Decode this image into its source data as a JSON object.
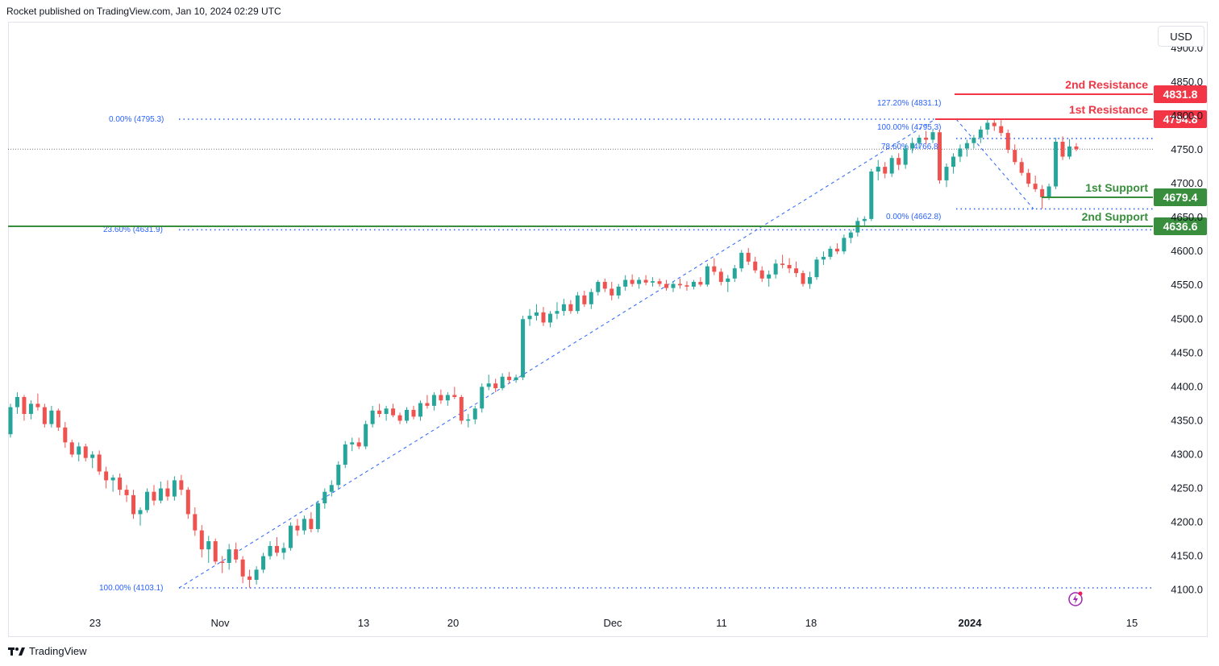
{
  "header": {
    "publisher_line": "Rocket published on TradingView.com, Jan 10, 2024 02:29 UTC"
  },
  "currency_button": {
    "label": "USD"
  },
  "footer": {
    "logo_text": "TradingView"
  },
  "colors": {
    "up": "#26a69a",
    "down": "#ef5350",
    "fib": "#2962ff",
    "resistance": "#f23645",
    "support": "#388e3c",
    "axis_text": "#131722"
  },
  "chart_data": {
    "type": "candlestick",
    "title": "",
    "x_tick_labels": [
      "23",
      "Nov",
      "13",
      "20",
      "Dec",
      "11",
      "18",
      "2024",
      "15"
    ],
    "y_ticks": [
      4100,
      4150,
      4200,
      4250,
      4300,
      4350,
      4400,
      4450,
      4500,
      4550,
      4600,
      4650,
      4700,
      4750,
      4800,
      4850,
      4900
    ],
    "y_tick_labels": [
      "4100.0",
      "4150.0",
      "4200.0",
      "4250.0",
      "4300.0",
      "4350.0",
      "4400.0",
      "4450.0",
      "4500.0",
      "4550.0",
      "4600.0",
      "4650.0",
      "4700.0",
      "4750.0",
      "4800.0",
      "4850.0",
      "4900.0"
    ],
    "ylim": [
      4073,
      4917
    ],
    "last_price": 4751,
    "levels": [
      {
        "name": "2nd Resistance",
        "value": 4831.8,
        "label": "4831.8",
        "kind": "resistance"
      },
      {
        "name": "1st Resistance",
        "value": 4794.8,
        "label": "4794.8",
        "kind": "resistance"
      },
      {
        "name": "1st Support",
        "value": 4679.4,
        "label": "4679.4",
        "kind": "support"
      },
      {
        "name": "2nd Support",
        "value": 4636.6,
        "label": "4636.6",
        "kind": "support"
      }
    ],
    "fib_labels": [
      {
        "text": "0.00% (4795.3)",
        "value": 4795.3
      },
      {
        "text": "23.60% (4631.9)",
        "value": 4631.9
      },
      {
        "text": "100.00% (4103.1)",
        "value": 4103.1
      },
      {
        "text": "127.20% (4831.1)",
        "value": 4831.1
      },
      {
        "text": "100.00% (4795.3)",
        "value": 4795.3
      },
      {
        "text": "78.60% (4766.8)",
        "value": 4766.8
      },
      {
        "text": "0.00% (4662.8)",
        "value": 4662.8
      }
    ],
    "path": [
      [
        0,
        4340
      ],
      [
        2,
        4380
      ],
      [
        5,
        4385
      ],
      [
        9,
        4355
      ],
      [
        13,
        4300
      ],
      [
        17,
        4250
      ],
      [
        22,
        4215
      ],
      [
        25,
        4240
      ],
      [
        30,
        4265
      ],
      [
        33,
        4235
      ],
      [
        38,
        4150
      ],
      [
        42,
        4130
      ],
      [
        46,
        4108
      ],
      [
        50,
        4150
      ],
      [
        55,
        4195
      ],
      [
        60,
        4230
      ],
      [
        64,
        4290
      ],
      [
        67,
        4320
      ],
      [
        71,
        4360
      ],
      [
        76,
        4375
      ],
      [
        80,
        4390
      ],
      [
        84,
        4350
      ],
      [
        87,
        4405
      ],
      [
        92,
        4415
      ],
      [
        94,
        4500
      ],
      [
        100,
        4515
      ],
      [
        104,
        4525
      ],
      [
        108,
        4540
      ],
      [
        111,
        4555
      ],
      [
        116,
        4560
      ],
      [
        122,
        4555
      ],
      [
        128,
        4550
      ],
      [
        133,
        4575
      ],
      [
        137,
        4560
      ],
      [
        142,
        4590
      ],
      [
        147,
        4580
      ],
      [
        151,
        4565
      ],
      [
        155,
        4585
      ],
      [
        158,
        4610
      ],
      [
        162,
        4630
      ],
      [
        166,
        4648
      ],
      [
        170,
        4720
      ],
      [
        174,
        4735
      ],
      [
        179,
        4762
      ],
      [
        184,
        4776
      ],
      [
        187,
        4700
      ],
      [
        191,
        4740
      ],
      [
        197,
        4772
      ],
      [
        202,
        4793
      ],
      [
        206,
        4782
      ],
      [
        210,
        4745
      ],
      [
        214,
        4720
      ],
      [
        218,
        4695
      ],
      [
        222,
        4680
      ],
      [
        225,
        4760
      ],
      [
        228,
        4745
      ],
      [
        230,
        4755
      ]
    ],
    "ohlc": [
      [
        4330,
        4375,
        4325,
        4370
      ],
      [
        4370,
        4392,
        4360,
        4385
      ],
      [
        4385,
        4388,
        4350,
        4360
      ],
      [
        4360,
        4380,
        4352,
        4375
      ],
      [
        4375,
        4390,
        4365,
        4370
      ],
      [
        4370,
        4375,
        4340,
        4345
      ],
      [
        4345,
        4372,
        4340,
        4365
      ],
      [
        4365,
        4368,
        4335,
        4340
      ],
      [
        4340,
        4348,
        4310,
        4318
      ],
      [
        4318,
        4322,
        4296,
        4300
      ],
      [
        4300,
        4318,
        4290,
        4312
      ],
      [
        4312,
        4316,
        4290,
        4295
      ],
      [
        4295,
        4305,
        4280,
        4300
      ],
      [
        4300,
        4306,
        4270,
        4275
      ],
      [
        4275,
        4282,
        4250,
        4262
      ],
      [
        4262,
        4270,
        4245,
        4266
      ],
      [
        4266,
        4272,
        4240,
        4248
      ],
      [
        4248,
        4255,
        4230,
        4240
      ],
      [
        4240,
        4248,
        4205,
        4212
      ],
      [
        4212,
        4222,
        4195,
        4218
      ],
      [
        4218,
        4250,
        4214,
        4245
      ],
      [
        4245,
        4255,
        4225,
        4232
      ],
      [
        4232,
        4260,
        4228,
        4250
      ],
      [
        4250,
        4262,
        4232,
        4238
      ],
      [
        4238,
        4268,
        4232,
        4262
      ],
      [
        4262,
        4270,
        4240,
        4248
      ],
      [
        4248,
        4252,
        4205,
        4212
      ],
      [
        4212,
        4222,
        4180,
        4188
      ],
      [
        4188,
        4196,
        4148,
        4160
      ],
      [
        4160,
        4180,
        4140,
        4172
      ],
      [
        4172,
        4176,
        4138,
        4142
      ],
      [
        4142,
        4150,
        4125,
        4140
      ],
      [
        4140,
        4168,
        4130,
        4160
      ],
      [
        4160,
        4170,
        4140,
        4145
      ],
      [
        4145,
        4150,
        4110,
        4120
      ],
      [
        4120,
        4130,
        4103,
        4115
      ],
      [
        4115,
        4135,
        4108,
        4130
      ],
      [
        4130,
        4155,
        4125,
        4150
      ],
      [
        4150,
        4172,
        4145,
        4165
      ],
      [
        4165,
        4178,
        4150,
        4155
      ],
      [
        4155,
        4170,
        4145,
        4162
      ],
      [
        4162,
        4200,
        4158,
        4195
      ],
      [
        4195,
        4205,
        4180,
        4188
      ],
      [
        4188,
        4210,
        4182,
        4205
      ],
      [
        4205,
        4215,
        4185,
        4190
      ],
      [
        4190,
        4232,
        4185,
        4228
      ],
      [
        4228,
        4250,
        4220,
        4245
      ],
      [
        4245,
        4262,
        4238,
        4255
      ],
      [
        4255,
        4290,
        4250,
        4285
      ],
      [
        4285,
        4320,
        4280,
        4315
      ],
      [
        4315,
        4325,
        4305,
        4318
      ],
      [
        4318,
        4325,
        4308,
        4312
      ],
      [
        4312,
        4350,
        4308,
        4345
      ],
      [
        4345,
        4372,
        4340,
        4365
      ],
      [
        4365,
        4375,
        4355,
        4360
      ],
      [
        4360,
        4372,
        4350,
        4368
      ],
      [
        4368,
        4375,
        4355,
        4358
      ],
      [
        4358,
        4362,
        4345,
        4350
      ],
      [
        4350,
        4370,
        4346,
        4366
      ],
      [
        4366,
        4372,
        4352,
        4356
      ],
      [
        4356,
        4380,
        4350,
        4376
      ],
      [
        4376,
        4388,
        4368,
        4372
      ],
      [
        4372,
        4392,
        4365,
        4388
      ],
      [
        4388,
        4396,
        4375,
        4380
      ],
      [
        4380,
        4392,
        4372,
        4388
      ],
      [
        4388,
        4400,
        4382,
        4385
      ],
      [
        4385,
        4388,
        4345,
        4350
      ],
      [
        4350,
        4360,
        4340,
        4352
      ],
      [
        4352,
        4372,
        4345,
        4368
      ],
      [
        4368,
        4405,
        4362,
        4400
      ],
      [
        4400,
        4418,
        4395,
        4405
      ],
      [
        4405,
        4412,
        4392,
        4398
      ],
      [
        4398,
        4420,
        4395,
        4415
      ],
      [
        4415,
        4422,
        4405,
        4410
      ],
      [
        4410,
        4418,
        4406,
        4414
      ],
      [
        4414,
        4505,
        4410,
        4500
      ],
      [
        4500,
        4515,
        4490,
        4505
      ],
      [
        4505,
        4522,
        4498,
        4510
      ],
      [
        4510,
        4518,
        4490,
        4495
      ],
      [
        4495,
        4512,
        4488,
        4508
      ],
      [
        4508,
        4525,
        4500,
        4512
      ],
      [
        4512,
        4530,
        4505,
        4522
      ],
      [
        4522,
        4528,
        4508,
        4512
      ],
      [
        4512,
        4540,
        4508,
        4535
      ],
      [
        4535,
        4542,
        4518,
        4522
      ],
      [
        4522,
        4545,
        4515,
        4540
      ],
      [
        4540,
        4558,
        4535,
        4555
      ],
      [
        4555,
        4560,
        4540,
        4545
      ],
      [
        4545,
        4555,
        4528,
        4535
      ],
      [
        4535,
        4552,
        4530,
        4548
      ],
      [
        4548,
        4565,
        4542,
        4558
      ],
      [
        4558,
        4566,
        4548,
        4552
      ],
      [
        4552,
        4562,
        4545,
        4558
      ],
      [
        4558,
        4565,
        4550,
        4554
      ],
      [
        4554,
        4562,
        4548,
        4556
      ],
      [
        4556,
        4560,
        4548,
        4552
      ],
      [
        4552,
        4558,
        4542,
        4546
      ],
      [
        4546,
        4556,
        4540,
        4552
      ],
      [
        4552,
        4560,
        4545,
        4550
      ],
      [
        4550,
        4556,
        4542,
        4548
      ],
      [
        4548,
        4558,
        4544,
        4555
      ],
      [
        4555,
        4562,
        4548,
        4551
      ],
      [
        4551,
        4582,
        4548,
        4578
      ],
      [
        4578,
        4590,
        4565,
        4570
      ],
      [
        4570,
        4575,
        4550,
        4555
      ],
      [
        4555,
        4565,
        4540,
        4560
      ],
      [
        4560,
        4580,
        4555,
        4575
      ],
      [
        4575,
        4602,
        4570,
        4598
      ],
      [
        4598,
        4605,
        4580,
        4585
      ],
      [
        4585,
        4592,
        4568,
        4572
      ],
      [
        4572,
        4578,
        4555,
        4560
      ],
      [
        4560,
        4572,
        4548,
        4566
      ],
      [
        4566,
        4588,
        4560,
        4582
      ],
      [
        4582,
        4595,
        4575,
        4580
      ],
      [
        4580,
        4590,
        4568,
        4575
      ],
      [
        4575,
        4585,
        4562,
        4568
      ],
      [
        4568,
        4572,
        4548,
        4552
      ],
      [
        4552,
        4570,
        4545,
        4562
      ],
      [
        4562,
        4592,
        4558,
        4588
      ],
      [
        4588,
        4600,
        4580,
        4592
      ],
      [
        4592,
        4608,
        4588,
        4604
      ],
      [
        4604,
        4612,
        4596,
        4600
      ],
      [
        4600,
        4625,
        4596,
        4620
      ],
      [
        4620,
        4632,
        4612,
        4628
      ],
      [
        4628,
        4650,
        4622,
        4645
      ],
      [
        4645,
        4652,
        4638,
        4648
      ],
      [
        4648,
        4722,
        4645,
        4718
      ],
      [
        4718,
        4735,
        4705,
        4725
      ],
      [
        4725,
        4732,
        4708,
        4715
      ],
      [
        4715,
        4742,
        4710,
        4738
      ],
      [
        4738,
        4745,
        4720,
        4728
      ],
      [
        4728,
        4758,
        4722,
        4752
      ],
      [
        4752,
        4768,
        4745,
        4760
      ],
      [
        4760,
        4772,
        4752,
        4768
      ],
      [
        4768,
        4778,
        4758,
        4765
      ],
      [
        4765,
        4780,
        4760,
        4776
      ],
      [
        4776,
        4780,
        4700,
        4705
      ],
      [
        4705,
        4730,
        4695,
        4725
      ],
      [
        4725,
        4745,
        4715,
        4740
      ],
      [
        4740,
        4758,
        4732,
        4752
      ],
      [
        4752,
        4765,
        4740,
        4760
      ],
      [
        4760,
        4772,
        4752,
        4768
      ],
      [
        4768,
        4785,
        4760,
        4780
      ],
      [
        4780,
        4795,
        4772,
        4790
      ],
      [
        4790,
        4796,
        4778,
        4785
      ],
      [
        4785,
        4794,
        4770,
        4775
      ],
      [
        4775,
        4780,
        4745,
        4750
      ],
      [
        4750,
        4758,
        4728,
        4732
      ],
      [
        4732,
        4738,
        4712,
        4716
      ],
      [
        4716,
        4722,
        4695,
        4700
      ],
      [
        4700,
        4712,
        4688,
        4692
      ],
      [
        4692,
        4698,
        4663,
        4680
      ],
      [
        4680,
        4700,
        4676,
        4696
      ],
      [
        4696,
        4768,
        4692,
        4762
      ],
      [
        4762,
        4770,
        4735,
        4740
      ],
      [
        4740,
        4766,
        4736,
        4755
      ],
      [
        4755,
        4760,
        4748,
        4751
      ]
    ]
  }
}
